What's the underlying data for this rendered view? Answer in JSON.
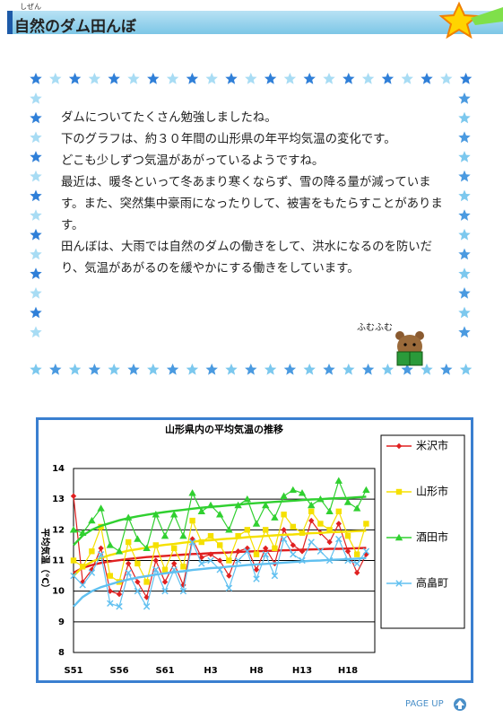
{
  "header": {
    "title": "自然のダム田んぼ",
    "ruby": "しぜん"
  },
  "message": {
    "paragraphs": [
      "ダムについてたくさん勉強しましたね。",
      "下のグラフは、約３０年間の山形県の年平均気温の変化です。",
      "どこも少しずつ気温があがっているようですね。",
      "最近は、暖冬といって冬あまり寒くならず、雪の降る量が減っています。また、突然集中豪雨になったりして、被害をもたらすことがあります。",
      "田んぼは、大雨では自然のダムの働きをして、洪水になるのを防いだり、気温があがるのを緩やかにする働きをしています。"
    ],
    "caption": "ふむふむ"
  },
  "chart_data": {
    "type": "line",
    "title": "山形県内の平均気温の推移",
    "y_label": "平均気温（℃）",
    "categories": [
      "S51",
      null,
      null,
      null,
      null,
      "S56",
      null,
      null,
      null,
      null,
      "S61",
      null,
      null,
      null,
      null,
      "H3",
      null,
      null,
      null,
      null,
      "H8",
      null,
      null,
      null,
      null,
      "H13",
      null,
      null,
      null,
      null,
      "H18",
      null,
      null
    ],
    "ylim": [
      8,
      14
    ],
    "yticks": [
      8,
      9,
      10,
      11,
      12,
      13,
      14
    ],
    "grid": true,
    "series": [
      {
        "name": "米沢市",
        "color": "#e02020",
        "marker": "diamond",
        "values": [
          13.1,
          10.3,
          10.7,
          11.4,
          10.0,
          9.9,
          10.9,
          10.3,
          9.8,
          11.0,
          10.3,
          10.9,
          10.2,
          11.7,
          11.1,
          11.2,
          11.0,
          10.5,
          11.3,
          11.4,
          10.7,
          11.4,
          10.9,
          12.0,
          11.5,
          11.3,
          12.3,
          11.9,
          11.6,
          12.2,
          11.3,
          10.6,
          11.2
        ],
        "trend": [
          10.6,
          10.76,
          10.85,
          10.92,
          10.97,
          11.01,
          11.05,
          11.08,
          11.11,
          11.13,
          11.15,
          11.17,
          11.19,
          11.21,
          11.22,
          11.24,
          11.25,
          11.26,
          11.28,
          11.29,
          11.3,
          11.31,
          11.32,
          11.33,
          11.34,
          11.35,
          11.36,
          11.37,
          11.38,
          11.38,
          11.39,
          11.4,
          11.41
        ]
      },
      {
        "name": "山形市",
        "color": "#f5e000",
        "marker": "square",
        "values": [
          11.0,
          10.8,
          11.3,
          12.1,
          10.5,
          10.3,
          11.6,
          10.9,
          10.3,
          11.5,
          10.7,
          11.4,
          10.8,
          12.3,
          11.6,
          11.8,
          11.5,
          11.0,
          11.8,
          12.0,
          11.2,
          12.0,
          11.4,
          12.5,
          12.1,
          11.9,
          12.6,
          12.2,
          12.0,
          12.6,
          11.8,
          11.2,
          12.2
        ],
        "trend": [
          10.5,
          10.79,
          10.96,
          11.08,
          11.18,
          11.25,
          11.32,
          11.37,
          11.42,
          11.47,
          11.51,
          11.54,
          11.58,
          11.61,
          11.64,
          11.66,
          11.69,
          11.71,
          11.73,
          11.76,
          11.78,
          11.8,
          11.82,
          11.84,
          11.85,
          11.87,
          11.89,
          11.9,
          11.92,
          11.93,
          11.94,
          11.96,
          11.97
        ]
      },
      {
        "name": "酒田市",
        "color": "#30d030",
        "marker": "triangle",
        "values": [
          12.0,
          11.9,
          12.3,
          12.7,
          11.5,
          11.3,
          12.4,
          11.7,
          11.4,
          12.5,
          11.8,
          12.5,
          11.8,
          13.2,
          12.6,
          12.8,
          12.5,
          12.0,
          12.8,
          13.0,
          12.2,
          12.8,
          12.4,
          13.1,
          13.3,
          13.2,
          12.8,
          13.0,
          12.6,
          13.6,
          12.9,
          12.7,
          13.3
        ],
        "trend": [
          11.5,
          11.81,
          12.0,
          12.13,
          12.22,
          12.31,
          12.38,
          12.44,
          12.49,
          12.54,
          12.58,
          12.62,
          12.65,
          12.69,
          12.72,
          12.75,
          12.77,
          12.8,
          12.82,
          12.85,
          12.87,
          12.89,
          12.91,
          12.93,
          12.95,
          12.97,
          12.99,
          13.0,
          13.02,
          13.03,
          13.04,
          13.06,
          13.08
        ]
      },
      {
        "name": "高畠町",
        "color": "#60c0f0",
        "marker": "x",
        "values": [
          10.5,
          10.2,
          10.6,
          11.2,
          9.6,
          9.5,
          10.6,
          10.0,
          9.5,
          10.7,
          10.0,
          10.7,
          10.0,
          11.6,
          10.9,
          11.0,
          10.7,
          10.1,
          11.0,
          11.3,
          10.4,
          11.2,
          10.5,
          11.7,
          11.2,
          11.0,
          11.6,
          11.3,
          11.0,
          11.7,
          11.0,
          10.9,
          11.3
        ],
        "trend": [
          9.5,
          9.81,
          10.0,
          10.13,
          10.22,
          10.31,
          10.38,
          10.44,
          10.49,
          10.54,
          10.58,
          10.62,
          10.65,
          10.69,
          10.72,
          10.75,
          10.77,
          10.8,
          10.82,
          10.85,
          10.87,
          10.89,
          10.91,
          10.93,
          10.95,
          10.97,
          10.99,
          11.0,
          11.02,
          11.03,
          11.04,
          11.06,
          11.08
        ]
      }
    ]
  },
  "footer": {
    "page_up": "PAGE UP"
  }
}
